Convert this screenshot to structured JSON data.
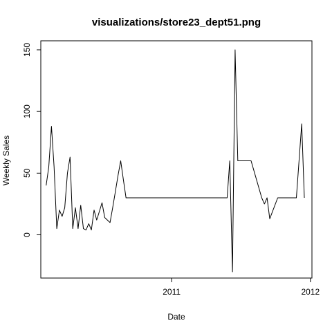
{
  "chart_data": {
    "type": "line",
    "title": "visualizations/store23_dept51.png",
    "xlabel": "Date",
    "ylabel": "Weekly Sales",
    "grid": false,
    "legend": "none",
    "xlim": [
      "2010-01-22",
      "2012-01-05"
    ],
    "ylim": [
      -30,
      150
    ],
    "x_ticks": [
      {
        "date": "2011-01-01",
        "label": "2011"
      },
      {
        "date": "2012-01-01",
        "label": "2012"
      }
    ],
    "y_ticks": [
      0,
      50,
      100,
      150
    ],
    "line_color": "#000000",
    "series": [
      {
        "points": [
          [
            "2010-02-05",
            40
          ],
          [
            "2010-02-12",
            55
          ],
          [
            "2010-02-19",
            88
          ],
          [
            "2010-02-26",
            55
          ],
          [
            "2010-03-05",
            5
          ],
          [
            "2010-03-12",
            20
          ],
          [
            "2010-03-19",
            15
          ],
          [
            "2010-03-26",
            22
          ],
          [
            "2010-04-02",
            50
          ],
          [
            "2010-04-09",
            63
          ],
          [
            "2010-04-16",
            5
          ],
          [
            "2010-04-23",
            22
          ],
          [
            "2010-04-30",
            5
          ],
          [
            "2010-05-07",
            24
          ],
          [
            "2010-05-14",
            5
          ],
          [
            "2010-05-21",
            4
          ],
          [
            "2010-05-28",
            9
          ],
          [
            "2010-06-04",
            4
          ],
          [
            "2010-06-11",
            20
          ],
          [
            "2010-06-18",
            12
          ],
          [
            "2010-06-25",
            19
          ],
          [
            "2010-07-02",
            26
          ],
          [
            "2010-07-09",
            14
          ],
          [
            "2010-07-16",
            12
          ],
          [
            "2010-07-23",
            10
          ],
          [
            "2010-07-30",
            22
          ],
          [
            "2010-08-06",
            35
          ],
          [
            "2010-08-13",
            48
          ],
          [
            "2010-08-20",
            60
          ],
          [
            "2010-08-27",
            45
          ],
          [
            "2010-09-03",
            30
          ],
          [
            "2010-09-10",
            30
          ],
          [
            "2011-05-27",
            30
          ],
          [
            "2011-06-03",
            60
          ],
          [
            "2011-06-10",
            -30
          ],
          [
            "2011-06-17",
            150
          ],
          [
            "2011-06-24",
            60
          ],
          [
            "2011-07-29",
            60
          ],
          [
            "2011-08-26",
            30
          ],
          [
            "2011-09-02",
            25
          ],
          [
            "2011-09-09",
            30
          ],
          [
            "2011-09-16",
            13
          ],
          [
            "2011-10-07",
            30
          ],
          [
            "2011-11-25",
            30
          ],
          [
            "2011-12-09",
            90
          ],
          [
            "2011-12-16",
            30
          ]
        ]
      }
    ]
  }
}
